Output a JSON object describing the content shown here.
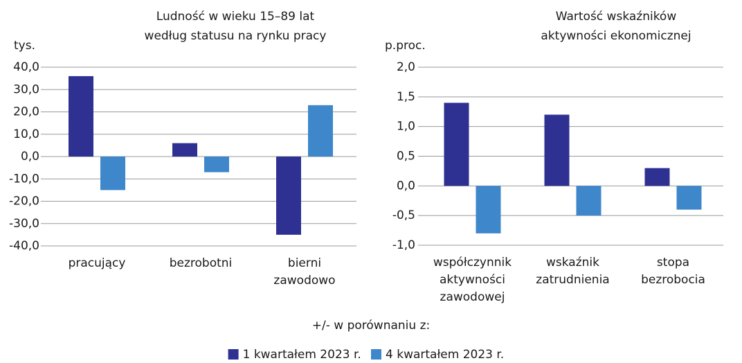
{
  "legend": {
    "title": "+/- w porównaniu z:",
    "items": [
      {
        "name": "1 kwartałem 2023 r.",
        "color": "#2e3192"
      },
      {
        "name": "4 kwartałem 2023 r.",
        "color": "#3f87cb"
      }
    ]
  },
  "chart_data": [
    {
      "type": "bar",
      "title": [
        "Ludność w wieku 15–89 lat",
        "według statusu na rynku pracy"
      ],
      "y_label": "tys.",
      "categories": [
        [
          "pracujący"
        ],
        [
          "bezrobotni"
        ],
        [
          "bierni",
          "zawodowo"
        ]
      ],
      "series": [
        {
          "values": [
            36,
            6,
            -35
          ]
        },
        {
          "values": [
            -15,
            -7,
            23
          ]
        }
      ],
      "ylim": [
        -40,
        40
      ],
      "yticks": [
        {
          "value": 40,
          "label": "40,0"
        },
        {
          "value": 30,
          "label": "30,0"
        },
        {
          "value": 20,
          "label": "20,0"
        },
        {
          "value": 10,
          "label": "10,0"
        },
        {
          "value": 0,
          "label": "0,0"
        },
        {
          "value": -10,
          "label": "-10,0"
        },
        {
          "value": -20,
          "label": "-20,0"
        },
        {
          "value": -30,
          "label": "-30,0"
        },
        {
          "value": -40,
          "label": "-40,0"
        }
      ],
      "grid": true
    },
    {
      "type": "bar",
      "title": [
        "Wartość wskaźników",
        "aktywności ekonomicznej"
      ],
      "y_label": "p.proc.",
      "categories": [
        [
          "współczynnik",
          "aktywności",
          "zawodowej"
        ],
        [
          "wskaźnik",
          "zatrudnienia"
        ],
        [
          "stopa",
          "bezrobocia"
        ]
      ],
      "series": [
        {
          "values": [
            1.4,
            1.2,
            0.3
          ]
        },
        {
          "values": [
            -0.8,
            -0.5,
            -0.4
          ]
        }
      ],
      "ylim": [
        -1,
        2
      ],
      "yticks": [
        {
          "value": 2,
          "label": "2,0"
        },
        {
          "value": 1.5,
          "label": "1,5"
        },
        {
          "value": 1,
          "label": "1,0"
        },
        {
          "value": 0.5,
          "label": "0,5"
        },
        {
          "value": 0,
          "label": "0,0"
        },
        {
          "value": -0.5,
          "label": "-0,5"
        },
        {
          "value": -1,
          "label": "-1,0"
        }
      ],
      "grid": true
    }
  ]
}
